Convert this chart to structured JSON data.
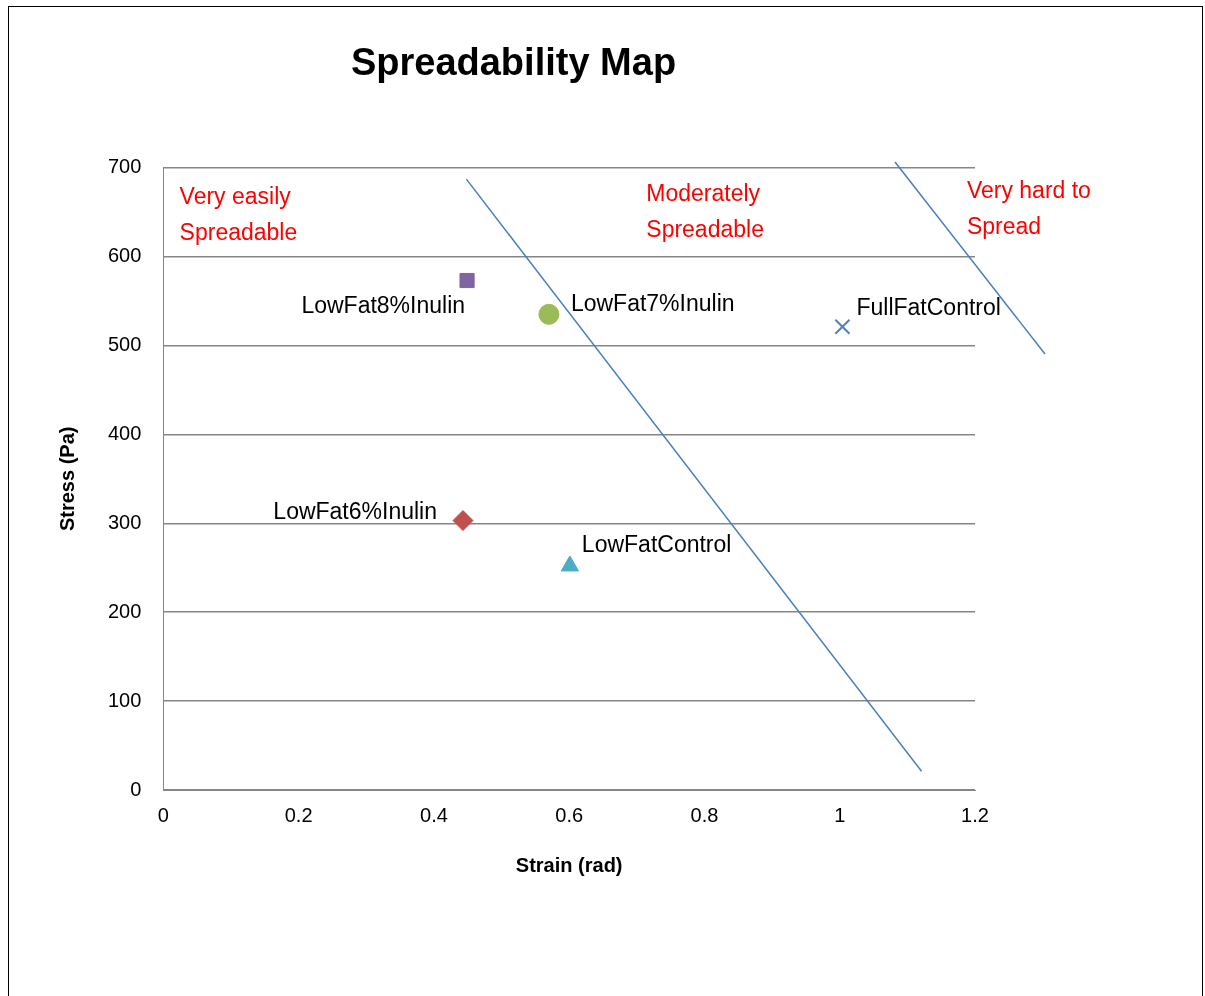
{
  "chart_data": {
    "type": "scatter",
    "title": "Spreadability Map",
    "xlabel": "Strain (rad)",
    "ylabel": "Stress (Pa)",
    "xlim": [
      0,
      1.2
    ],
    "xticks": [
      0,
      0.2,
      0.4,
      0.6,
      0.8,
      1,
      1.2
    ],
    "ylim": [
      0,
      700
    ],
    "yticks": [
      0,
      100,
      200,
      300,
      400,
      500,
      600,
      700
    ],
    "grid": "y",
    "legend": false,
    "series": [
      {
        "name": "LowFat8%Inulin",
        "color": "#8064a2",
        "marker": "square",
        "x": [
          0.449
        ],
        "values": [
          573
        ]
      },
      {
        "name": "LowFat7%Inulin",
        "color": "#9bbb59",
        "marker": "circle",
        "x": [
          0.57
        ],
        "values": [
          535
        ]
      },
      {
        "name": "FullFatControl",
        "color": "#4f81bd",
        "marker": "cross",
        "x": [
          1.004
        ],
        "values": [
          521
        ]
      },
      {
        "name": "LowFat6%Inulin",
        "color": "#c0504d",
        "marker": "diamond",
        "x": [
          0.443
        ],
        "values": [
          303
        ]
      },
      {
        "name": "LowFatControl",
        "color": "#4bacc6",
        "marker": "triangle",
        "x": [
          0.601
        ],
        "values": [
          252
        ]
      },
      {
        "type": "line",
        "color": "#4a7ebb",
        "marker": "none",
        "x": [
          0.448,
          1.121
        ],
        "values": [
          687,
          21
        ]
      }
    ],
    "annotations": [
      "Very easily\nSpreadable",
      "Moderately\nSpreadable",
      "Very hard to\nSpread"
    ]
  }
}
